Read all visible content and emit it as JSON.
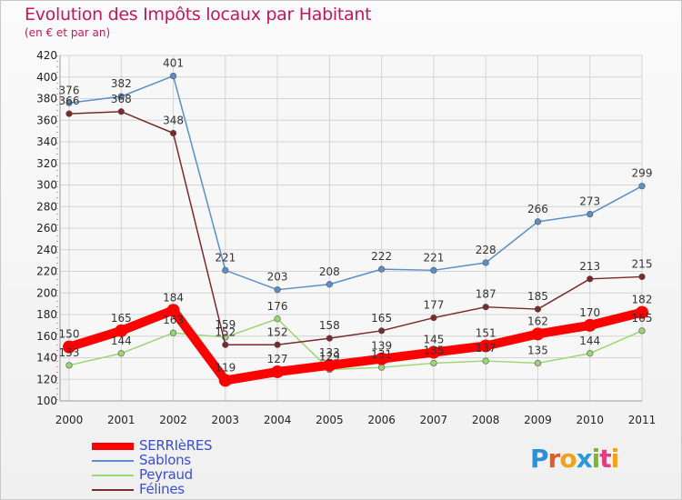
{
  "title": "Evolution des Impôts locaux par Habitant",
  "subtitle": "(en € et par an)",
  "brand": "Proxiti",
  "chart_data": {
    "type": "line",
    "title": "Evolution des Impôts locaux par Habitant",
    "subtitle": "(en € et par an)",
    "xlabel": "",
    "ylabel": "",
    "ylim": [
      100,
      420
    ],
    "ytick_step": 20,
    "grid": true,
    "legend_position": "bottom-left",
    "x": [
      "2000",
      "2001",
      "2002",
      "2003",
      "2004",
      "2005",
      "2006",
      "2007",
      "2008",
      "2009",
      "2010",
      "2011"
    ],
    "series": [
      {
        "name": "Sablons",
        "color": "#5b8fc9",
        "values": [
          376,
          382,
          401,
          221,
          203,
          208,
          222,
          221,
          228,
          266,
          273,
          299
        ]
      },
      {
        "name": "Peyraud",
        "color": "#9ad674",
        "values": [
          133,
          144,
          163,
          159,
          176,
          129,
          131,
          135,
          137,
          135,
          144,
          165
        ]
      },
      {
        "name": "Félines",
        "color": "#7a2a2a",
        "values": [
          366,
          368,
          348,
          152,
          152,
          158,
          165,
          177,
          187,
          185,
          213,
          215
        ]
      },
      {
        "name": "SERRIèRES",
        "color": "#ff0000",
        "values": [
          150,
          165,
          184,
          119,
          127,
          133,
          139,
          145,
          151,
          162,
          170,
          182
        ]
      }
    ],
    "legend_order": [
      "SERRIèRES",
      "Sablons",
      "Peyraud",
      "Félines"
    ]
  }
}
